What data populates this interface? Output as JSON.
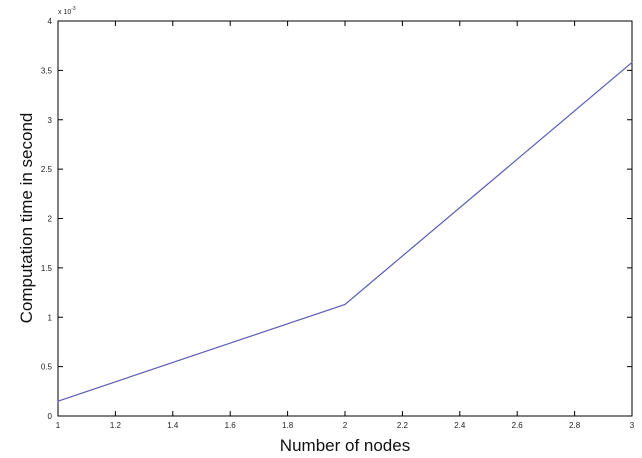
{
  "chart_data": {
    "type": "line",
    "title": "",
    "xlabel": "Number of nodes",
    "ylabel": "Computation time in second",
    "y_exponent_label": "x 10",
    "y_exponent_power": "-3",
    "xlim": [
      1,
      3
    ],
    "ylim": [
      0,
      4
    ],
    "x_ticks": [
      "1",
      "1.2",
      "1.4",
      "1.6",
      "1.8",
      "2",
      "2.2",
      "2.4",
      "2.6",
      "2.8",
      "3"
    ],
    "y_ticks": [
      "0",
      "0.5",
      "1",
      "1.5",
      "2",
      "2.5",
      "3",
      "3.5",
      "4"
    ],
    "grid": false,
    "series": [
      {
        "color": "#5a5cb4",
        "x": [
          1,
          2,
          3
        ],
        "y": [
          0.15,
          1.13,
          3.58
        ]
      }
    ]
  }
}
